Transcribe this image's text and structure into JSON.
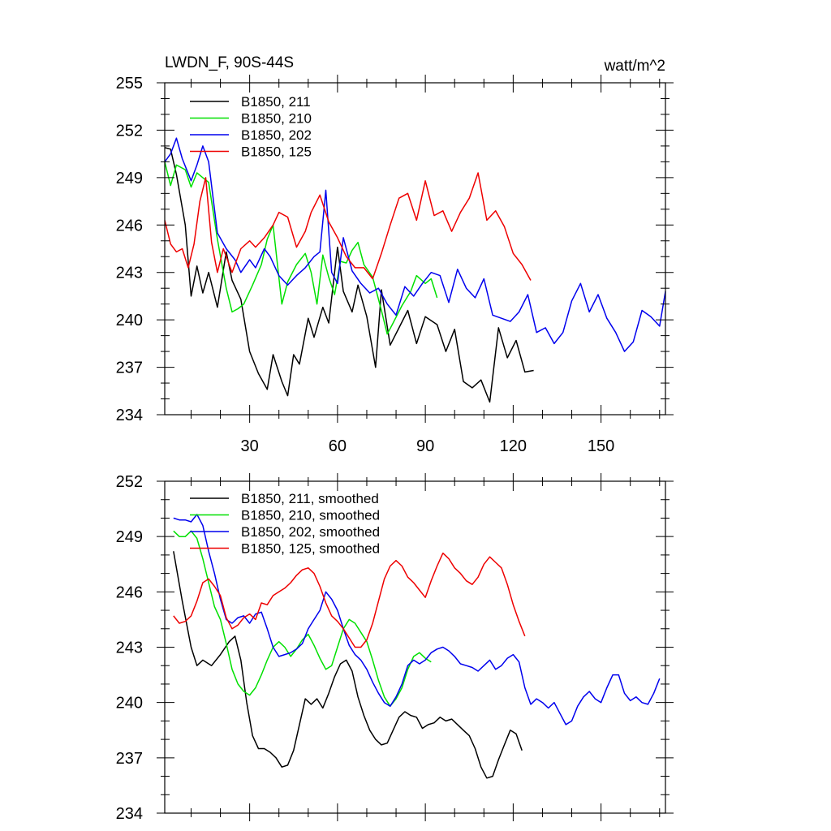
{
  "colors": {
    "211": "#000000",
    "210": "#00e000",
    "202": "#0000ee",
    "125": "#ee0000"
  },
  "chart_data": [
    {
      "type": "line",
      "title": "LWDN_F, 90S-44S",
      "units": "watt/m^2",
      "xlim": [
        1,
        172
      ],
      "ylim": [
        234,
        255
      ],
      "yticks": [
        234,
        237,
        240,
        243,
        246,
        249,
        252,
        255
      ],
      "ytick_labels": [
        "234",
        "237",
        "240",
        "243",
        "246",
        "249",
        "252",
        "255"
      ],
      "xticks": [
        30,
        60,
        90,
        120,
        150
      ],
      "xtick_labels": [
        "30",
        "60",
        "90",
        "120",
        "150"
      ],
      "legend": [
        "B1850, 211",
        "B1850, 210",
        "B1850, 202",
        "B1850, 125"
      ],
      "series": [
        {
          "name": "B1850, 211",
          "key": "211",
          "x": [
            1,
            3,
            5,
            8,
            10,
            12,
            14,
            16,
            19,
            22,
            24,
            27,
            30,
            33,
            36,
            38,
            41,
            43,
            45,
            47,
            50,
            52,
            55,
            57,
            60,
            62,
            65,
            67,
            70,
            73,
            75,
            78,
            81,
            84,
            87,
            90,
            94,
            97,
            100,
            103,
            106,
            109,
            112,
            115,
            118,
            121,
            124,
            127
          ],
          "y": [
            250.9,
            250.8,
            249.2,
            246.0,
            241.5,
            243.4,
            241.7,
            243.0,
            240.8,
            244.3,
            242.5,
            241.3,
            238.0,
            236.6,
            235.6,
            237.8,
            236.1,
            235.2,
            237.8,
            237.2,
            240.1,
            238.9,
            240.8,
            239.8,
            244.6,
            241.8,
            240.5,
            242.2,
            240.2,
            237.0,
            241.9,
            238.4,
            239.5,
            240.6,
            238.5,
            240.2,
            239.7,
            238.0,
            239.4,
            236.1,
            235.7,
            236.2,
            234.8,
            239.5,
            237.6,
            238.7,
            236.7,
            236.8
          ]
        },
        {
          "name": "B1850, 210",
          "key": "210",
          "x": [
            1,
            3,
            5,
            8,
            10,
            12,
            14,
            16,
            19,
            22,
            24,
            26,
            28,
            31,
            34,
            36,
            38,
            41,
            43,
            46,
            49,
            51,
            53,
            55,
            57,
            59,
            61,
            63,
            65,
            67,
            69,
            72,
            75,
            77,
            79,
            82,
            85,
            87,
            90,
            92,
            94
          ],
          "y": [
            250.0,
            248.5,
            249.8,
            249.5,
            248.4,
            249.3,
            249.0,
            248.7,
            245.1,
            242.0,
            240.5,
            240.7,
            241.0,
            242.2,
            243.5,
            245.1,
            246.0,
            241.0,
            242.4,
            243.5,
            244.2,
            243.0,
            241.0,
            244.1,
            242.7,
            241.6,
            243.7,
            243.6,
            244.4,
            244.9,
            243.5,
            242.7,
            240.6,
            239.1,
            239.8,
            240.9,
            241.8,
            242.8,
            242.3,
            242.6,
            241.4
          ]
        },
        {
          "name": "B1850, 202",
          "key": "202",
          "x": [
            1,
            3,
            5,
            7,
            10,
            12,
            14,
            16,
            19,
            22,
            25,
            27,
            30,
            32,
            35,
            37,
            40,
            43,
            46,
            49,
            52,
            54,
            56,
            58,
            60,
            62,
            65,
            68,
            71,
            74,
            77,
            80,
            83,
            86,
            89,
            92,
            95,
            98,
            101,
            104,
            107,
            110,
            113,
            116,
            119,
            122,
            125,
            128,
            131,
            134,
            137,
            140,
            143,
            146,
            149,
            152,
            155,
            158,
            161,
            164,
            167,
            170,
            172
          ],
          "y": [
            250.0,
            250.5,
            251.5,
            250.2,
            248.8,
            249.8,
            251.0,
            250.0,
            245.5,
            244.5,
            243.8,
            243.0,
            243.8,
            243.3,
            244.5,
            244.0,
            242.8,
            242.2,
            242.8,
            243.3,
            244.0,
            244.3,
            248.2,
            243.0,
            242.3,
            245.2,
            243.1,
            242.3,
            241.7,
            242.0,
            241.0,
            240.3,
            242.1,
            241.5,
            242.3,
            243.0,
            242.8,
            241.1,
            243.2,
            242.0,
            241.4,
            242.6,
            240.3,
            240.1,
            239.9,
            240.5,
            241.6,
            239.2,
            239.5,
            238.5,
            239.2,
            241.2,
            242.3,
            240.5,
            241.6,
            240.1,
            239.2,
            238.0,
            238.6,
            240.6,
            240.2,
            239.6,
            241.8
          ]
        },
        {
          "name": "B1850, 125",
          "key": "125",
          "x": [
            1,
            3,
            5,
            7,
            9,
            11,
            13,
            15,
            17,
            19,
            21,
            24,
            27,
            30,
            32,
            35,
            38,
            40,
            43,
            46,
            49,
            51,
            54,
            57,
            60,
            63,
            66,
            69,
            72,
            75,
            78,
            81,
            84,
            87,
            90,
            93,
            96,
            99,
            102,
            105,
            108,
            111,
            114,
            117,
            120,
            123,
            126
          ],
          "y": [
            246.3,
            244.8,
            244.3,
            244.5,
            243.3,
            244.8,
            247.5,
            249.0,
            244.9,
            243.0,
            244.5,
            243.0,
            244.5,
            245.0,
            244.6,
            245.2,
            246.0,
            246.8,
            246.5,
            244.6,
            245.6,
            246.8,
            247.9,
            246.2,
            245.2,
            244.0,
            243.3,
            243.3,
            242.6,
            244.2,
            246.0,
            247.7,
            248.0,
            246.3,
            248.8,
            246.6,
            246.9,
            245.6,
            246.8,
            247.7,
            249.3,
            246.3,
            246.9,
            245.9,
            244.2,
            243.5,
            242.5
          ]
        }
      ]
    },
    {
      "type": "line",
      "title": "",
      "xlim": [
        1,
        172
      ],
      "ylim": [
        234,
        252
      ],
      "yticks": [
        234,
        237,
        240,
        243,
        246,
        249,
        252
      ],
      "ytick_labels": [
        "234",
        "237",
        "240",
        "243",
        "246",
        "249",
        "252"
      ],
      "xticks": [
        30,
        60,
        90,
        120,
        150
      ],
      "legend": [
        "B1850, 211, smoothed",
        "B1850, 210, smoothed",
        "B1850, 202, smoothed",
        "B1850, 125, smoothed"
      ],
      "series": [
        {
          "name": "B1850, 211, smoothed",
          "key": "211",
          "x": [
            4,
            7,
            10,
            12,
            14,
            17,
            20,
            23,
            25,
            27,
            29,
            31,
            33,
            35,
            37,
            39,
            41,
            43,
            45,
            47,
            49,
            51,
            53,
            55,
            57,
            59,
            61,
            63,
            65,
            67,
            69,
            71,
            73,
            75,
            77,
            79,
            81,
            83,
            85,
            87,
            89,
            91,
            93,
            95,
            97,
            99,
            101,
            103,
            105,
            107,
            109,
            111,
            113,
            115,
            117,
            119,
            121,
            123
          ],
          "y": [
            248.2,
            245.5,
            243.0,
            242.0,
            242.3,
            242.0,
            242.6,
            243.3,
            243.6,
            242.3,
            240.0,
            238.2,
            237.5,
            237.5,
            237.3,
            237.0,
            236.5,
            236.6,
            237.4,
            238.8,
            240.2,
            239.9,
            240.2,
            239.7,
            240.5,
            241.4,
            242.1,
            242.3,
            241.7,
            240.3,
            239.3,
            238.5,
            238.0,
            237.7,
            237.8,
            238.5,
            239.2,
            239.5,
            239.3,
            239.2,
            238.6,
            238.8,
            238.9,
            239.2,
            239.0,
            239.1,
            238.8,
            238.5,
            238.2,
            237.5,
            236.5,
            235.9,
            236.0,
            236.9,
            237.7,
            238.5,
            238.3,
            237.4
          ]
        },
        {
          "name": "B1850, 210, smoothed",
          "key": "210",
          "x": [
            4,
            6,
            8,
            10,
            12,
            14,
            16,
            18,
            20,
            22,
            24,
            26,
            28,
            30,
            32,
            34,
            36,
            38,
            40,
            42,
            44,
            46,
            48,
            50,
            52,
            54,
            56,
            58,
            60,
            62,
            64,
            66,
            68,
            70,
            72,
            74,
            76,
            78,
            80,
            82,
            84,
            86,
            88,
            90,
            92
          ],
          "y": [
            249.3,
            249.0,
            249.0,
            249.3,
            248.9,
            247.8,
            246.5,
            245.2,
            244.5,
            243.2,
            241.8,
            241.0,
            240.6,
            240.4,
            240.8,
            241.5,
            242.3,
            243.0,
            243.3,
            243.0,
            242.5,
            242.9,
            243.4,
            243.7,
            243.1,
            242.4,
            241.8,
            242.0,
            243.0,
            244.0,
            244.5,
            244.3,
            243.8,
            243.3,
            242.3,
            241.2,
            240.3,
            239.8,
            240.2,
            240.8,
            241.8,
            242.5,
            242.7,
            242.4,
            242.2
          ]
        },
        {
          "name": "B1850, 202, smoothed",
          "key": "202",
          "x": [
            4,
            6,
            8,
            10,
            12,
            14,
            16,
            18,
            20,
            22,
            24,
            26,
            28,
            30,
            32,
            34,
            36,
            38,
            40,
            42,
            44,
            46,
            48,
            50,
            52,
            54,
            56,
            58,
            60,
            62,
            64,
            66,
            68,
            70,
            72,
            74,
            76,
            78,
            80,
            82,
            84,
            86,
            88,
            90,
            92,
            94,
            96,
            98,
            100,
            102,
            104,
            106,
            108,
            110,
            112,
            114,
            116,
            118,
            120,
            122,
            124,
            126,
            128,
            130,
            132,
            134,
            136,
            138,
            140,
            142,
            144,
            146,
            148,
            150,
            152,
            154,
            156,
            158,
            160,
            162,
            164,
            166,
            168,
            170
          ],
          "y": [
            250.0,
            249.9,
            249.9,
            249.8,
            250.2,
            249.6,
            248.2,
            247.0,
            245.6,
            244.5,
            244.3,
            244.6,
            244.7,
            244.3,
            244.8,
            244.9,
            244.0,
            243.0,
            242.5,
            242.6,
            242.7,
            242.9,
            243.2,
            244.0,
            244.5,
            245.0,
            246.0,
            245.6,
            245.0,
            244.0,
            243.1,
            242.6,
            242.3,
            241.8,
            241.1,
            240.5,
            240.0,
            239.8,
            240.3,
            241.0,
            242.0,
            242.3,
            242.1,
            242.3,
            242.7,
            242.9,
            243.0,
            242.8,
            242.5,
            242.1,
            242.0,
            241.9,
            241.7,
            242.0,
            242.3,
            241.8,
            242.0,
            242.4,
            242.6,
            242.2,
            240.8,
            239.9,
            240.2,
            240.0,
            239.7,
            240.0,
            239.4,
            238.8,
            239.0,
            239.8,
            240.3,
            240.6,
            240.2,
            240.0,
            240.8,
            241.5,
            241.5,
            240.5,
            240.1,
            240.3,
            240.0,
            239.9,
            240.5,
            241.3
          ]
        },
        {
          "name": "B1850, 125",
          "key": "125",
          "x": [
            4,
            6,
            8,
            10,
            12,
            14,
            16,
            18,
            20,
            22,
            24,
            26,
            28,
            30,
            32,
            34,
            36,
            38,
            40,
            42,
            44,
            46,
            48,
            50,
            52,
            54,
            56,
            58,
            60,
            62,
            64,
            66,
            68,
            70,
            72,
            74,
            76,
            78,
            80,
            82,
            84,
            86,
            88,
            90,
            92,
            94,
            96,
            98,
            100,
            102,
            104,
            106,
            108,
            110,
            112,
            114,
            116,
            118,
            120,
            122,
            124
          ],
          "y": [
            244.7,
            244.3,
            244.4,
            244.7,
            245.5,
            246.5,
            246.7,
            246.3,
            245.8,
            244.6,
            244.0,
            244.2,
            244.6,
            244.8,
            244.5,
            245.4,
            245.3,
            245.8,
            246.0,
            246.2,
            246.5,
            246.9,
            247.2,
            247.3,
            247.0,
            246.3,
            245.4,
            244.7,
            244.4,
            244.0,
            243.5,
            243.0,
            243.0,
            243.4,
            244.3,
            245.5,
            246.7,
            247.4,
            247.7,
            247.4,
            246.8,
            246.5,
            246.1,
            245.7,
            246.6,
            247.4,
            248.1,
            247.8,
            247.3,
            247.0,
            246.6,
            246.4,
            246.8,
            247.5,
            247.9,
            247.6,
            247.3,
            246.4,
            245.3,
            244.4,
            243.6
          ]
        }
      ]
    }
  ]
}
